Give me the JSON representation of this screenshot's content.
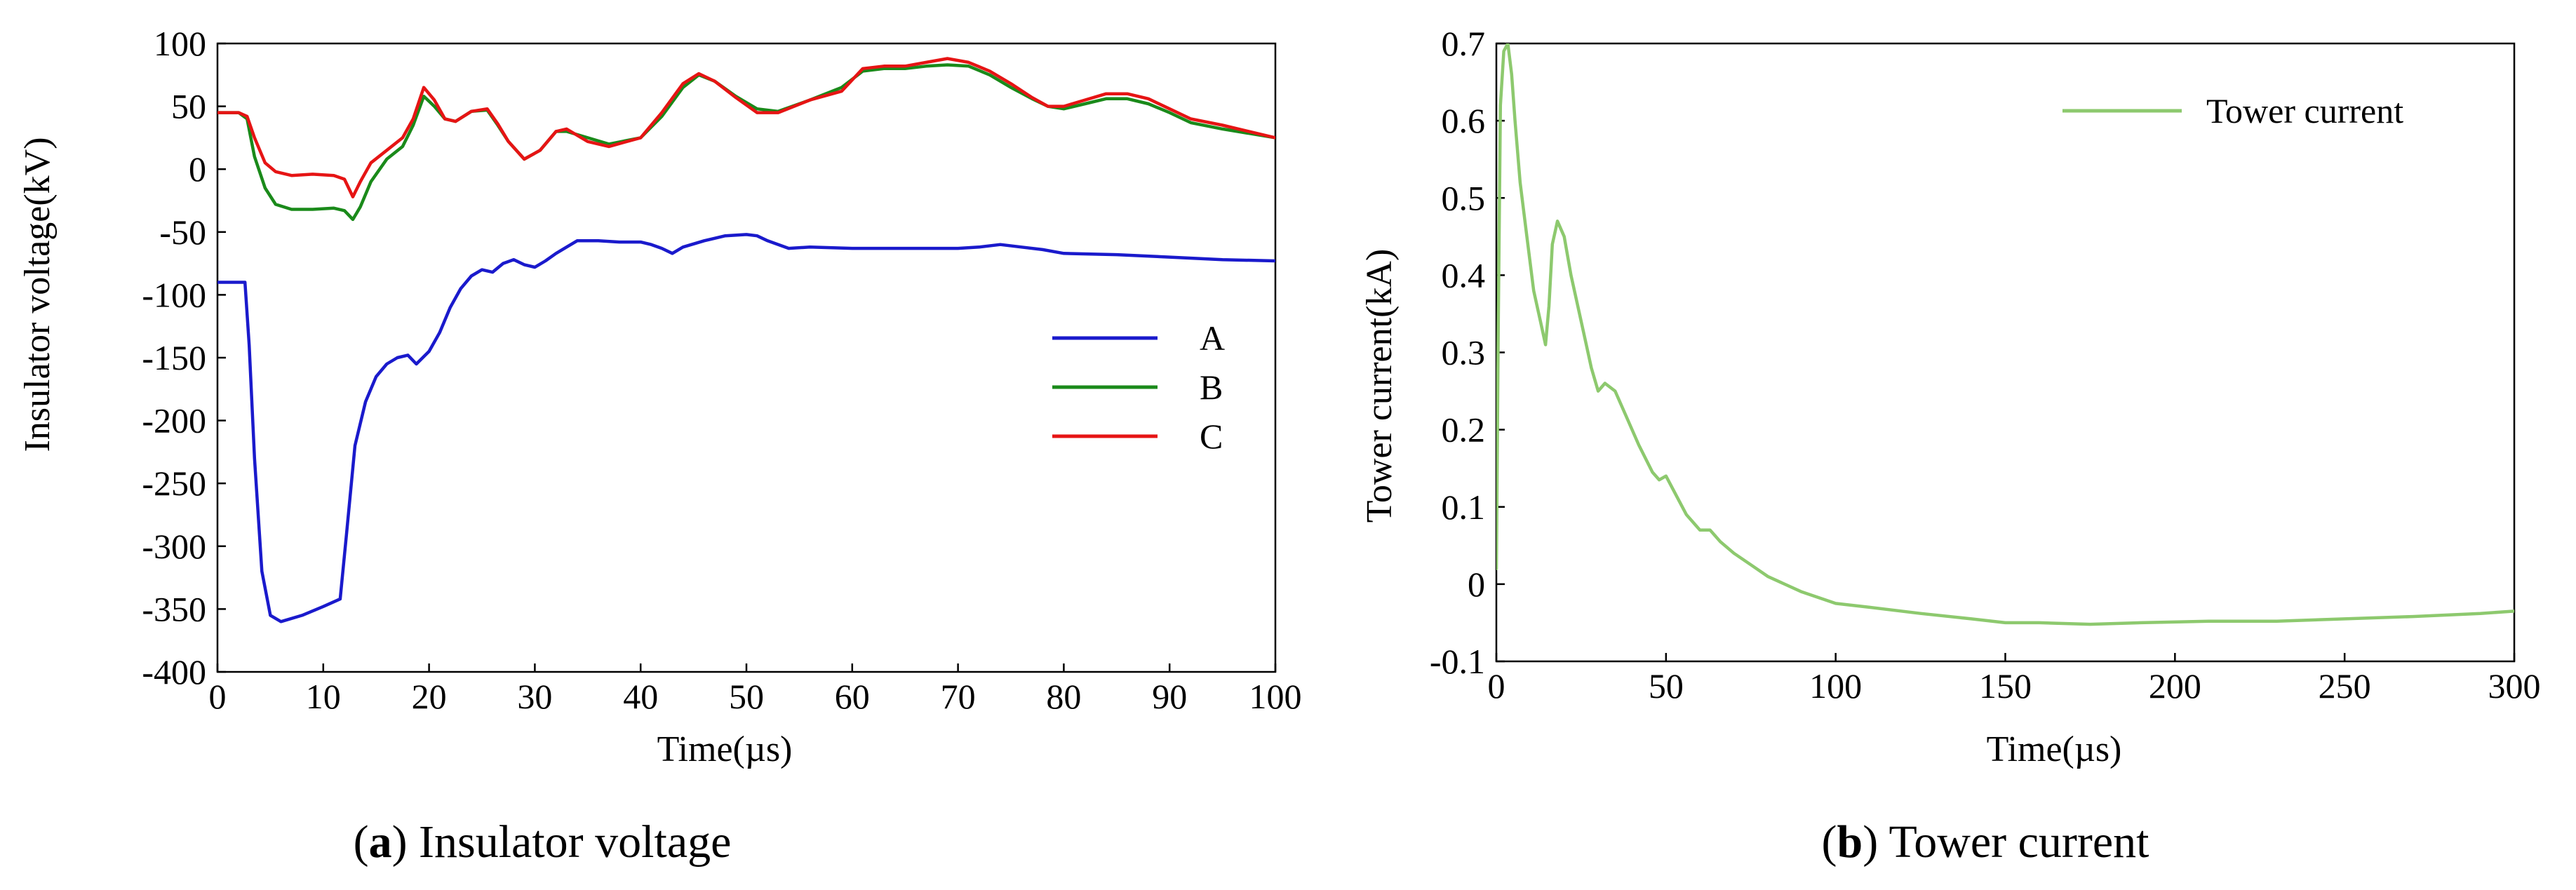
{
  "chart_data": [
    {
      "id": "a",
      "type": "line",
      "xlabel": "Time(µs)",
      "ylabel": "Insulator voltage(kV)",
      "xlim": [
        0,
        100
      ],
      "ylim": [
        -400,
        100
      ],
      "xticks": [
        0,
        10,
        20,
        30,
        40,
        50,
        60,
        70,
        80,
        90,
        100
      ],
      "yticks": [
        100,
        50,
        0,
        -50,
        -100,
        -150,
        -200,
        -250,
        -300,
        -350,
        -400
      ],
      "grid": false,
      "legend_position": "center-right",
      "caption_letter": "a",
      "caption_text": "Insulator voltage",
      "series": [
        {
          "name": "A",
          "color": "#1a1acc",
          "x": [
            0,
            2.6,
            3,
            3.5,
            4.2,
            5,
            6,
            8,
            10,
            11.6,
            12.2,
            13,
            14,
            15,
            16,
            17,
            18,
            18.8,
            20,
            21,
            22,
            23,
            24,
            25,
            26,
            27,
            28,
            29,
            30,
            31,
            32,
            33,
            34,
            36,
            38,
            40,
            41,
            42,
            43,
            44,
            46,
            48,
            50,
            51,
            52,
            54,
            56,
            60,
            65,
            70,
            72,
            74,
            76,
            78,
            80,
            85,
            90,
            95,
            100
          ],
          "y": [
            -90,
            -90,
            -140,
            -230,
            -320,
            -355,
            -360,
            -355,
            -348,
            -342,
            -290,
            -220,
            -185,
            -165,
            -155,
            -150,
            -148,
            -155,
            -145,
            -130,
            -110,
            -95,
            -85,
            -80,
            -82,
            -75,
            -72,
            -76,
            -78,
            -73,
            -67,
            -62,
            -57,
            -57,
            -58,
            -58,
            -60,
            -63,
            -67,
            -62,
            -57,
            -53,
            -52,
            -53,
            -57,
            -63,
            -62,
            -63,
            -63,
            -63,
            -62,
            -60,
            -62,
            -64,
            -67,
            -68,
            -70,
            -72,
            -73
          ]
        },
        {
          "name": "B",
          "color": "#1a8a1a",
          "x": [
            0,
            2,
            2.8,
            3.5,
            4.5,
            5.5,
            7,
            9,
            11,
            12,
            12.8,
            13.5,
            14.5,
            16,
            17.5,
            18.5,
            19.5,
            20.5,
            21.5,
            22.5,
            24,
            25.5,
            26.5,
            27.5,
            29,
            30.5,
            32,
            33,
            35,
            37,
            40,
            42,
            44,
            45.5,
            47,
            49,
            51,
            53,
            56,
            59,
            61,
            63,
            65,
            67,
            69,
            71,
            73,
            75,
            77,
            78.5,
            80,
            82,
            84,
            86,
            88,
            90,
            92,
            95,
            100
          ],
          "y": [
            45,
            45,
            40,
            10,
            -15,
            -28,
            -32,
            -32,
            -31,
            -33,
            -40,
            -30,
            -10,
            8,
            18,
            35,
            58,
            50,
            40,
            38,
            46,
            47,
            35,
            22,
            8,
            15,
            30,
            30,
            25,
            20,
            25,
            42,
            65,
            75,
            70,
            58,
            48,
            46,
            55,
            65,
            78,
            80,
            80,
            82,
            83,
            82,
            75,
            65,
            56,
            50,
            48,
            52,
            56,
            56,
            52,
            45,
            37,
            32,
            25
          ]
        },
        {
          "name": "C",
          "color": "#e61414",
          "x": [
            0,
            2,
            2.8,
            3.5,
            4.5,
            5.5,
            7,
            9,
            11,
            12,
            12.8,
            13.5,
            14.5,
            16,
            17.5,
            18.5,
            19.5,
            20.5,
            21.5,
            22.5,
            24,
            25.5,
            26.5,
            27.5,
            29,
            30.5,
            32,
            33,
            35,
            37,
            40,
            42,
            44,
            45.5,
            47,
            49,
            51,
            53,
            56,
            59,
            61,
            63,
            65,
            67,
            69,
            71,
            73,
            75,
            77,
            78.5,
            80,
            82,
            84,
            86,
            88,
            90,
            92,
            95,
            100
          ],
          "y": [
            45,
            45,
            42,
            25,
            5,
            -2,
            -5,
            -4,
            -5,
            -8,
            -22,
            -10,
            5,
            15,
            25,
            40,
            65,
            55,
            40,
            38,
            46,
            48,
            36,
            22,
            8,
            15,
            30,
            32,
            22,
            18,
            25,
            45,
            68,
            76,
            70,
            57,
            45,
            45,
            55,
            62,
            80,
            82,
            82,
            85,
            88,
            85,
            78,
            68,
            57,
            50,
            50,
            55,
            60,
            60,
            56,
            48,
            40,
            35,
            25
          ]
        }
      ]
    },
    {
      "id": "b",
      "type": "line",
      "xlabel": "Time(µs)",
      "ylabel": "Tower current(kA)",
      "xlim": [
        0,
        300
      ],
      "ylim": [
        -0.1,
        0.7
      ],
      "xticks": [
        0,
        50,
        100,
        150,
        200,
        250,
        300
      ],
      "yticks": [
        0.7,
        0.6,
        0.5,
        0.4,
        0.3,
        0.2,
        0.1,
        0,
        -0.1
      ],
      "grid": false,
      "legend_position": "top-right",
      "caption_letter": "b",
      "caption_text": "Tower current",
      "series": [
        {
          "name": "Tower current",
          "color": "#8dc96e",
          "x": [
            0,
            0.6,
            1.2,
            2.2,
            3.4,
            4.5,
            5.5,
            7,
            9,
            11,
            13,
            14.5,
            15.5,
            16.5,
            18,
            20,
            22,
            24,
            26,
            28,
            30,
            32,
            35,
            38,
            42,
            46,
            48,
            50,
            53,
            56,
            60,
            63,
            66,
            70,
            75,
            80,
            90,
            100,
            110,
            125,
            140,
            150,
            160,
            175,
            190,
            210,
            230,
            250,
            270,
            290,
            300
          ],
          "y": [
            0.02,
            0.35,
            0.62,
            0.69,
            0.7,
            0.66,
            0.6,
            0.52,
            0.45,
            0.38,
            0.34,
            0.31,
            0.36,
            0.44,
            0.47,
            0.45,
            0.4,
            0.36,
            0.32,
            0.28,
            0.25,
            0.26,
            0.25,
            0.22,
            0.18,
            0.145,
            0.135,
            0.14,
            0.115,
            0.09,
            0.07,
            0.07,
            0.055,
            0.04,
            0.025,
            0.01,
            -0.01,
            -0.025,
            -0.03,
            -0.038,
            -0.045,
            -0.05,
            -0.05,
            -0.052,
            -0.05,
            -0.048,
            -0.048,
            -0.045,
            -0.042,
            -0.038,
            -0.035
          ]
        }
      ]
    }
  ]
}
